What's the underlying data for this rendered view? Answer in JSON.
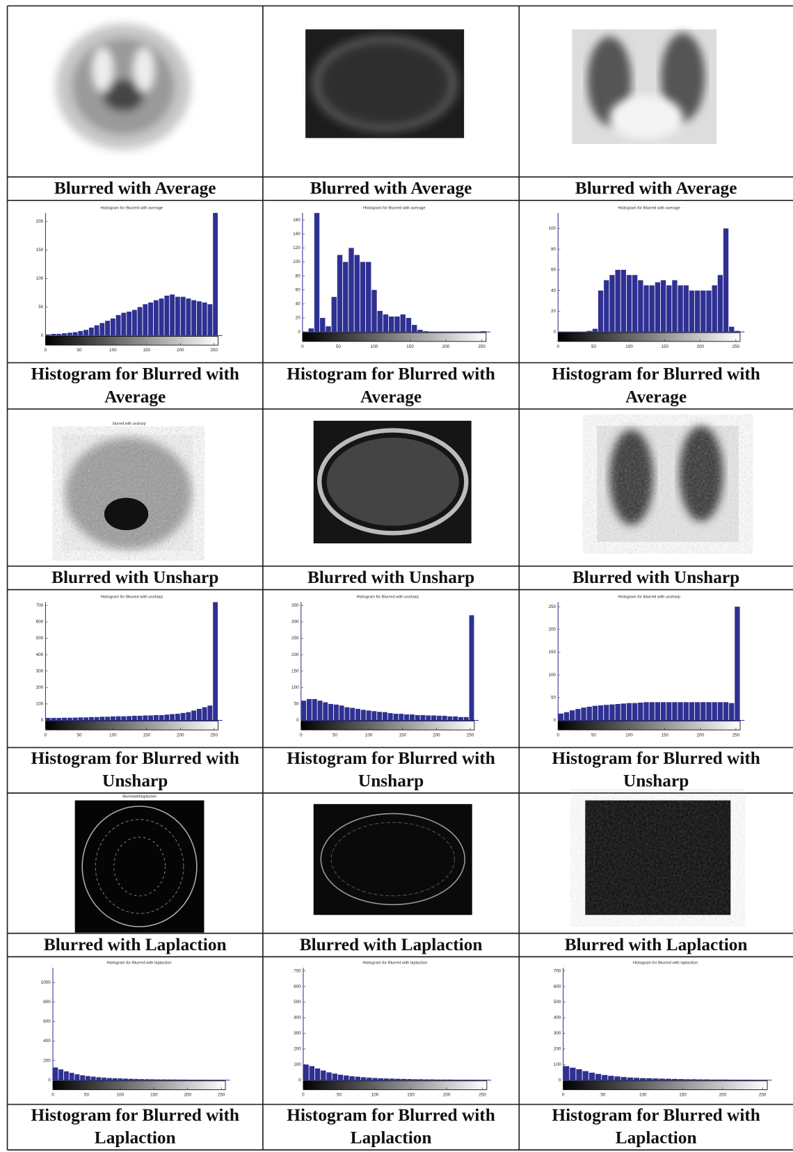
{
  "rows": [
    {
      "captions": [
        "Blurred with Average",
        "Blurred with Average",
        "Blurred with Average"
      ]
    },
    {
      "captions": [
        "Histogram for Blurred with Average",
        "Histogram for Blurred with Average",
        "Histogram for Blurred with Average"
      ]
    },
    {
      "image_title": "blurred with unsharp",
      "captions": [
        "Blurred with Unsharp",
        "Blurred with Unsharp",
        "Blurred with Unsharp"
      ]
    },
    {
      "captions": [
        "Histogram for Blurred with Unsharp",
        "Histogram for Blurred with Unsharp",
        "Histogram for Blurred with Unsharp"
      ]
    },
    {
      "image_title": "Blurredwithlaplaction",
      "captions": [
        "Blurred with Laplaction",
        "Blurred with Laplaction",
        "Blurred with Laplaction"
      ]
    },
    {
      "captions": [
        "Histogram for Blurred with Laplaction",
        "Histogram for Blurred with Laplaction",
        "Histogram for Blurred with Laplaction"
      ]
    }
  ],
  "chart_data": [
    {
      "type": "histogram",
      "title": "Histogram for Blurred with average",
      "color": "#2e3192",
      "bins": [
        0,
        8,
        16,
        24,
        32,
        40,
        48,
        56,
        64,
        72,
        80,
        88,
        96,
        104,
        112,
        120,
        128,
        136,
        144,
        152,
        160,
        168,
        176,
        184,
        192,
        200,
        208,
        216,
        224,
        232,
        240,
        248,
        256
      ],
      "values": [
        2,
        3,
        3,
        4,
        5,
        6,
        8,
        10,
        14,
        18,
        22,
        26,
        30,
        36,
        40,
        42,
        45,
        50,
        55,
        58,
        62,
        65,
        70,
        72,
        68,
        68,
        65,
        62,
        60,
        58,
        55,
        230
      ],
      "xlim": [
        0,
        256
      ],
      "xticks": [
        0,
        50,
        100,
        150,
        200,
        250
      ],
      "ylim": [
        0,
        215
      ],
      "yticks": [
        0,
        50,
        100,
        150,
        200
      ]
    },
    {
      "type": "histogram",
      "title": "Histogram for Blurred with average",
      "color": "#2e3192",
      "bins": [
        0,
        8,
        16,
        24,
        32,
        40,
        48,
        56,
        64,
        72,
        80,
        88,
        96,
        104,
        112,
        120,
        128,
        136,
        144,
        152,
        160,
        168,
        176,
        184,
        192,
        200,
        208,
        216,
        224,
        232,
        240,
        248,
        256
      ],
      "values": [
        0,
        5,
        175,
        20,
        8,
        50,
        110,
        100,
        120,
        110,
        100,
        100,
        60,
        30,
        25,
        22,
        22,
        25,
        20,
        10,
        3,
        1,
        0,
        0,
        0,
        0,
        0,
        0,
        0,
        0,
        0,
        1
      ],
      "xlim": [
        0,
        256
      ],
      "xticks": [
        0,
        50,
        100,
        150,
        200,
        250
      ],
      "ylim": [
        0,
        170
      ],
      "yticks": [
        0,
        20,
        40,
        60,
        80,
        100,
        120,
        140,
        160
      ]
    },
    {
      "type": "histogram",
      "title": "Histogram for Blurred with average",
      "color": "#2e3192",
      "bins": [
        0,
        8,
        16,
        24,
        32,
        40,
        48,
        56,
        64,
        72,
        80,
        88,
        96,
        104,
        112,
        120,
        128,
        136,
        144,
        152,
        160,
        168,
        176,
        184,
        192,
        200,
        208,
        216,
        224,
        232,
        240,
        248,
        256
      ],
      "values": [
        0,
        0,
        0,
        0,
        0,
        1,
        3,
        40,
        50,
        55,
        60,
        60,
        55,
        55,
        50,
        45,
        45,
        48,
        50,
        45,
        50,
        45,
        45,
        40,
        40,
        40,
        40,
        45,
        55,
        100,
        5,
        1
      ],
      "xlim": [
        0,
        256
      ],
      "xticks": [
        0,
        50,
        100,
        150,
        200,
        250
      ],
      "ylim": [
        0,
        115
      ],
      "yticks": [
        0,
        20,
        40,
        60,
        80,
        100
      ]
    },
    {
      "type": "histogram",
      "title": "Histogram for Blurred with unsharp",
      "color": "#2e3192",
      "bins": [
        0,
        8,
        16,
        24,
        32,
        40,
        48,
        56,
        64,
        72,
        80,
        88,
        96,
        104,
        112,
        120,
        128,
        136,
        144,
        152,
        160,
        168,
        176,
        184,
        192,
        200,
        208,
        216,
        224,
        232,
        240,
        248,
        256
      ],
      "values": [
        15,
        15,
        15,
        16,
        16,
        17,
        18,
        18,
        20,
        20,
        22,
        22,
        24,
        25,
        25,
        26,
        28,
        28,
        30,
        30,
        32,
        32,
        35,
        38,
        40,
        45,
        50,
        60,
        70,
        80,
        90,
        720
      ],
      "xlim": [
        0,
        256
      ],
      "xticks": [
        0,
        50,
        100,
        150,
        200,
        250
      ],
      "ylim": [
        0,
        720
      ],
      "yticks": [
        0,
        100,
        200,
        300,
        400,
        500,
        600,
        700
      ]
    },
    {
      "type": "histogram",
      "title": "Histogram for Blurred with unsharp",
      "color": "#2e3192",
      "bins": [
        0,
        8,
        16,
        24,
        32,
        40,
        48,
        56,
        64,
        72,
        80,
        88,
        96,
        104,
        112,
        120,
        128,
        136,
        144,
        152,
        160,
        168,
        176,
        184,
        192,
        200,
        208,
        216,
        224,
        232,
        240,
        248,
        256
      ],
      "values": [
        60,
        65,
        65,
        60,
        55,
        50,
        48,
        45,
        40,
        38,
        35,
        32,
        30,
        28,
        26,
        25,
        22,
        20,
        20,
        18,
        18,
        16,
        16,
        15,
        15,
        14,
        14,
        12,
        12,
        10,
        10,
        320
      ],
      "xlim": [
        0,
        256
      ],
      "xticks": [
        0,
        50,
        100,
        150,
        200,
        250
      ],
      "ylim": [
        0,
        360
      ],
      "yticks": [
        0,
        50,
        100,
        150,
        200,
        250,
        300,
        350
      ]
    },
    {
      "type": "histogram",
      "title": "Histogram for Blurred with unsharp",
      "color": "#2e3192",
      "bins": [
        0,
        8,
        16,
        24,
        32,
        40,
        48,
        56,
        64,
        72,
        80,
        88,
        96,
        104,
        112,
        120,
        128,
        136,
        144,
        152,
        160,
        168,
        176,
        184,
        192,
        200,
        208,
        216,
        224,
        232,
        240,
        248,
        256
      ],
      "values": [
        15,
        18,
        22,
        25,
        28,
        30,
        32,
        33,
        34,
        35,
        36,
        37,
        38,
        38,
        39,
        40,
        40,
        40,
        40,
        40,
        40,
        40,
        40,
        40,
        40,
        40,
        40,
        40,
        40,
        40,
        38,
        250
      ],
      "xlim": [
        0,
        256
      ],
      "xticks": [
        0,
        50,
        100,
        150,
        200,
        250
      ],
      "ylim": [
        0,
        260
      ],
      "yticks": [
        0,
        50,
        100,
        150,
        200,
        250
      ]
    },
    {
      "type": "histogram",
      "title": "Histogram for Blurred with laplaction",
      "color": "#2e3192",
      "bins": [
        0,
        8,
        16,
        24,
        32,
        40,
        48,
        56,
        64,
        72,
        80,
        88,
        96,
        104,
        112,
        120,
        128,
        136,
        144,
        152,
        160,
        168,
        176,
        184,
        192,
        200,
        208,
        216,
        224,
        232,
        240,
        248,
        256
      ],
      "values": [
        130,
        110,
        90,
        75,
        60,
        50,
        42,
        36,
        30,
        26,
        22,
        20,
        18,
        16,
        14,
        12,
        11,
        10,
        9,
        8,
        8,
        7,
        7,
        6,
        6,
        5,
        5,
        5,
        4,
        4,
        4,
        3
      ],
      "xlim": [
        0,
        256
      ],
      "xticks": [
        0,
        50,
        100,
        150,
        200,
        250
      ],
      "ylim": [
        0,
        1150
      ],
      "yticks": [
        0,
        200,
        400,
        600,
        800,
        1000
      ]
    },
    {
      "type": "histogram",
      "title": "Histogram for Blurred with laplaction",
      "color": "#2e3192",
      "bins": [
        0,
        8,
        16,
        24,
        32,
        40,
        48,
        56,
        64,
        72,
        80,
        88,
        96,
        104,
        112,
        120,
        128,
        136,
        144,
        152,
        160,
        168,
        176,
        184,
        192,
        200,
        208,
        216,
        224,
        232,
        240,
        248,
        256
      ],
      "values": [
        100,
        90,
        75,
        62,
        50,
        42,
        35,
        30,
        25,
        22,
        19,
        16,
        14,
        12,
        11,
        10,
        9,
        8,
        7,
        6,
        6,
        5,
        5,
        4,
        4,
        4,
        3,
        3,
        3,
        3,
        2,
        2
      ],
      "xlim": [
        0,
        256
      ],
      "xticks": [
        0,
        50,
        100,
        150,
        200,
        250
      ],
      "ylim": [
        0,
        720
      ],
      "yticks": [
        0,
        100,
        200,
        300,
        400,
        500,
        600,
        700
      ]
    },
    {
      "type": "histogram",
      "title": "Histogram for Blurred with laplaction",
      "color": "#2e3192",
      "bins": [
        0,
        8,
        16,
        24,
        32,
        40,
        48,
        56,
        64,
        72,
        80,
        88,
        96,
        104,
        112,
        120,
        128,
        136,
        144,
        152,
        160,
        168,
        176,
        184,
        192,
        200,
        208,
        216,
        224,
        232,
        240,
        248,
        256
      ],
      "values": [
        90,
        80,
        70,
        58,
        48,
        40,
        33,
        28,
        24,
        20,
        17,
        15,
        13,
        12,
        11,
        10,
        9,
        8,
        7,
        6,
        6,
        5,
        5,
        4,
        4,
        4,
        3,
        3,
        3,
        3,
        2,
        2
      ],
      "xlim": [
        0,
        256
      ],
      "xticks": [
        0,
        50,
        100,
        150,
        200,
        250
      ],
      "ylim": [
        0,
        720
      ],
      "yticks": [
        0,
        100,
        200,
        300,
        400,
        500,
        600,
        700
      ]
    }
  ]
}
